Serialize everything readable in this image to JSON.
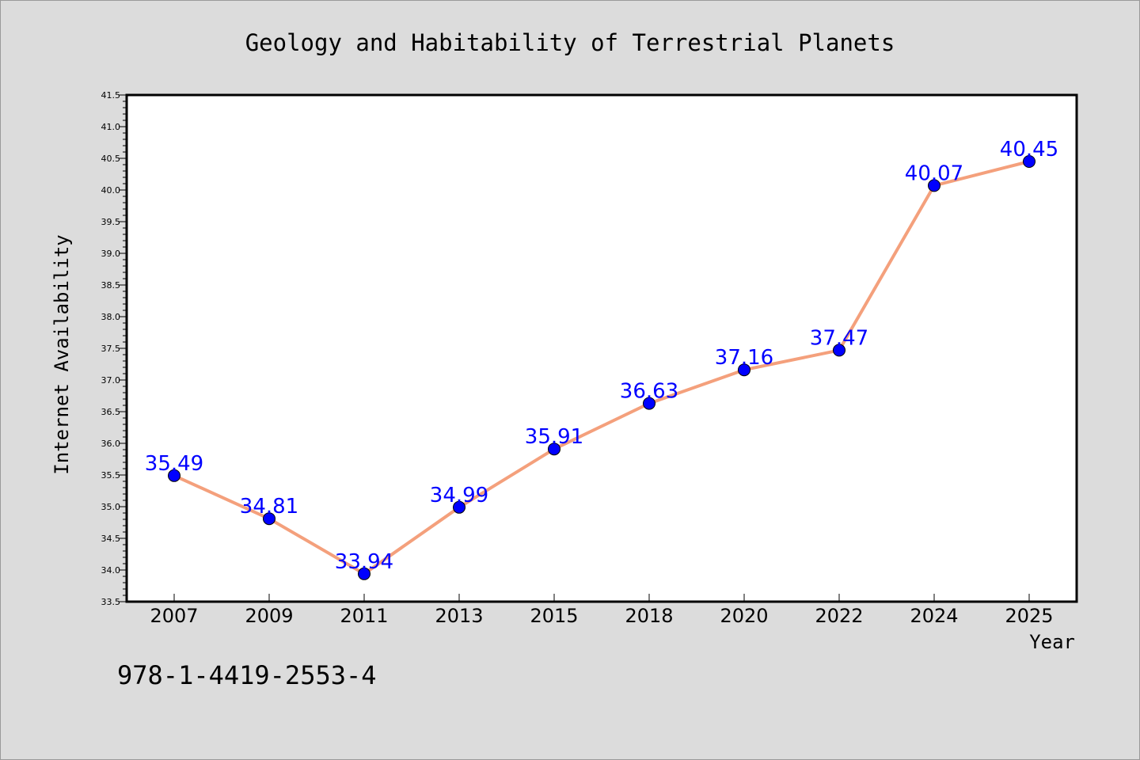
{
  "chart_data": {
    "type": "line",
    "title": "Geology and Habitability of Terrestrial Planets",
    "xlabel": "Year",
    "ylabel": "Internet Availability",
    "categories": [
      "2007",
      "2009",
      "2011",
      "2013",
      "2015",
      "2018",
      "2020",
      "2022",
      "2024",
      "2025"
    ],
    "series": [
      {
        "values": [
          35.49,
          34.81,
          33.94,
          34.99,
          35.91,
          36.63,
          37.16,
          37.47,
          40.07,
          40.45
        ]
      }
    ],
    "data_labels": [
      "35.49",
      "34.81",
      "33.94",
      "34.99",
      "35.91",
      "36.63",
      "37.16",
      "37.47",
      "40.07",
      "40.45"
    ],
    "ylim": [
      33.5,
      41.5
    ],
    "yticks": [
      "33.5",
      "34.0",
      "34.5",
      "35.0",
      "35.5",
      "36.0",
      "36.5",
      "37.0",
      "37.5",
      "38.0",
      "38.5",
      "39.0",
      "39.5",
      "40.0",
      "40.5",
      "41.0",
      "41.5"
    ],
    "grid": false,
    "line_color": "#f4a07c",
    "marker_color": "#0000ff",
    "label_color": "#0000ff"
  },
  "footer_code": "978-1-4419-2553-4"
}
